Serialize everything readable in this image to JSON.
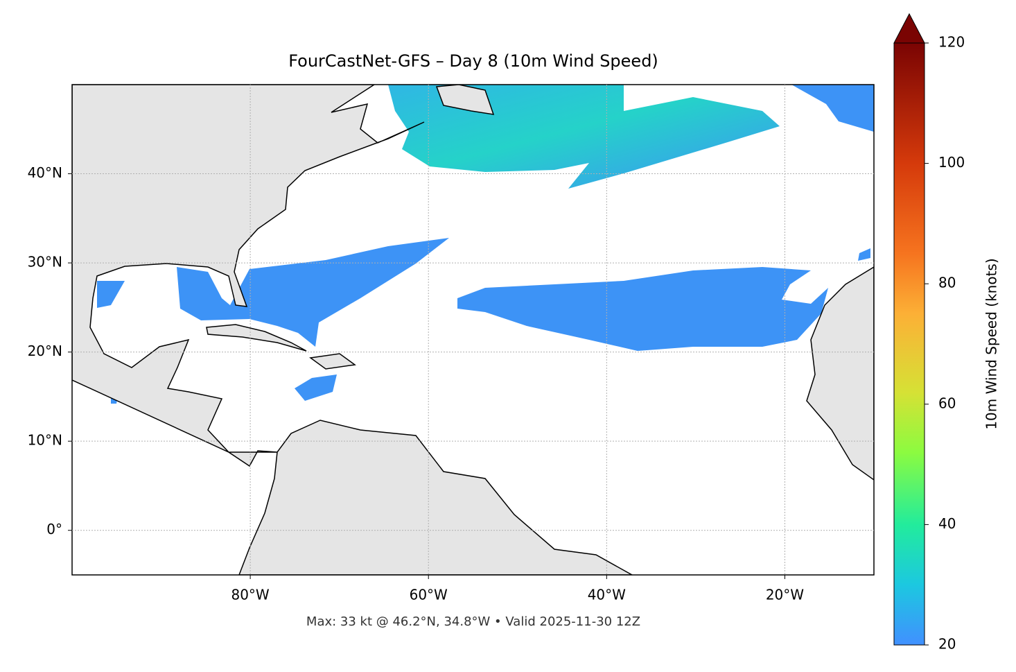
{
  "chart_data": {
    "type": "map",
    "title": "FourCastNet-GFS – Day 8 (10m Wind Speed)",
    "footer": "Max: 33 kt @ 46.2°N, 34.8°W • Valid 2025-11-30 12Z",
    "xlim": [
      -100,
      -10
    ],
    "ylim": [
      -5,
      50
    ],
    "xticks": [
      {
        "value": -80,
        "label": "80°W"
      },
      {
        "value": -60,
        "label": "60°W"
      },
      {
        "value": -40,
        "label": "40°W"
      },
      {
        "value": -20,
        "label": "20°W"
      }
    ],
    "yticks": [
      {
        "value": 0,
        "label": "0°"
      },
      {
        "value": 10,
        "label": "10°N"
      },
      {
        "value": 20,
        "label": "20°N"
      },
      {
        "value": 30,
        "label": "30°N"
      },
      {
        "value": 40,
        "label": "40°N"
      }
    ],
    "grid": true,
    "colorbar": {
      "label": "10m Wind Speed (knots)",
      "lim": [
        20,
        120
      ],
      "ticks": [
        20,
        40,
        60,
        80,
        100,
        120
      ]
    }
  }
}
